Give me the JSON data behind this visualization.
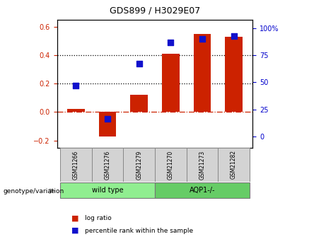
{
  "title": "GDS899 / H3029E07",
  "samples": [
    "GSM21266",
    "GSM21276",
    "GSM21279",
    "GSM21270",
    "GSM21273",
    "GSM21282"
  ],
  "log_ratio": [
    0.02,
    -0.17,
    0.12,
    0.41,
    0.55,
    0.53
  ],
  "percentile_rank_pct": [
    47,
    16,
    67,
    87,
    90,
    93
  ],
  "bar_color": "#cc2200",
  "dot_color": "#1111cc",
  "ylim_left": [
    -0.25,
    0.65
  ],
  "ylim_right": [
    -10.4,
    108
  ],
  "yticks_left": [
    -0.2,
    0.0,
    0.2,
    0.4,
    0.6
  ],
  "yticks_right": [
    0,
    25,
    50,
    75,
    100
  ],
  "ytick_labels_right": [
    "0",
    "25",
    "50",
    "75",
    "100%"
  ],
  "hlines": [
    0.2,
    0.4
  ],
  "hline_zero_color": "#cc2200",
  "hline_dotted_color": "#000000",
  "tick_label_color_left": "#cc2200",
  "tick_label_color_right": "#0000cc",
  "legend_log_ratio": "log ratio",
  "legend_percentile": "percentile rank within the sample",
  "genotype_label": "genotype/variation",
  "bar_width": 0.55,
  "dot_size": 35,
  "sample_box_color": "#d3d3d3",
  "wt_color": "#90ee90",
  "aqp_color": "#66cc66"
}
